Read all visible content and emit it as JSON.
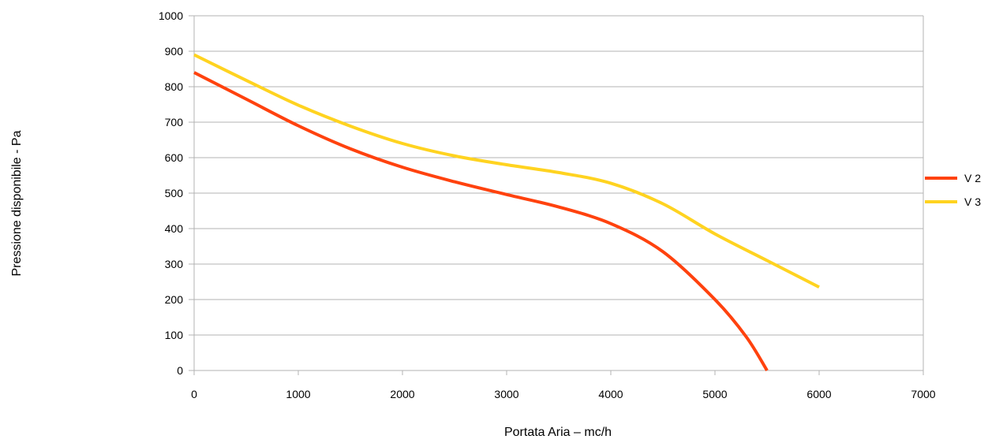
{
  "chart_data": {
    "type": "line",
    "xlabel": "Portata Aria – mc/h",
    "ylabel": "Pressione disponibile - Pa",
    "xlim": [
      0,
      7000
    ],
    "ylim": [
      0,
      1000
    ],
    "x_ticks": [
      "0",
      "1000",
      "2000",
      "3000",
      "4000",
      "5000",
      "6000",
      "7000"
    ],
    "y_ticks": [
      "0",
      "100",
      "200",
      "300",
      "400",
      "500",
      "600",
      "700",
      "800",
      "900",
      "1000"
    ],
    "grid": "horizontal",
    "legend_position": "right",
    "series": [
      {
        "name": "V 2",
        "color": "#ff420e",
        "points": [
          [
            0,
            840
          ],
          [
            500,
            765
          ],
          [
            1000,
            690
          ],
          [
            1500,
            625
          ],
          [
            2000,
            573
          ],
          [
            2500,
            532
          ],
          [
            3000,
            496
          ],
          [
            3500,
            461
          ],
          [
            4000,
            414
          ],
          [
            4500,
            335
          ],
          [
            5000,
            200
          ],
          [
            5300,
            95
          ],
          [
            5500,
            0
          ]
        ]
      },
      {
        "name": "V 3",
        "color": "#ffd320",
        "points": [
          [
            0,
            890
          ],
          [
            500,
            818
          ],
          [
            1000,
            748
          ],
          [
            1500,
            689
          ],
          [
            2000,
            640
          ],
          [
            2500,
            605
          ],
          [
            3000,
            580
          ],
          [
            3500,
            558
          ],
          [
            4000,
            528
          ],
          [
            4500,
            470
          ],
          [
            5000,
            385
          ],
          [
            5500,
            310
          ],
          [
            6000,
            235
          ]
        ]
      }
    ]
  }
}
